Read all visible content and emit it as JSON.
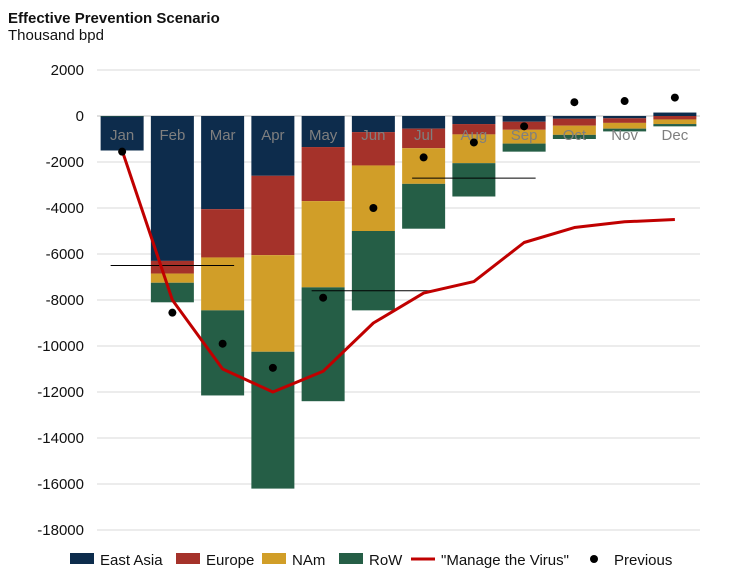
{
  "chart_data": {
    "type": "bar",
    "stacked": true,
    "title": "Effective Prevention Scenario",
    "subtitle": "Thousand bpd",
    "ylim": [
      -18000,
      2000
    ],
    "yticks": [
      2000,
      0,
      -2000,
      -4000,
      -6000,
      -8000,
      -10000,
      -12000,
      -14000,
      -16000,
      -18000
    ],
    "categories": [
      "Jan",
      "Feb",
      "Mar",
      "Apr",
      "May",
      "Jun",
      "Jul",
      "Aug",
      "Sep",
      "Oct",
      "Nov",
      "Dec"
    ],
    "series": [
      {
        "name": "East Asia",
        "color": "#0d2c4c",
        "values": [
          -1500,
          -6300,
          -4050,
          -2600,
          -1350,
          -700,
          -550,
          -350,
          -250,
          -120,
          -100,
          150
        ]
      },
      {
        "name": "Europe",
        "color": "#a5322a",
        "values": [
          0,
          -550,
          -2100,
          -3450,
          -2350,
          -1450,
          -850,
          -450,
          -350,
          -300,
          -200,
          -150
        ]
      },
      {
        "name": "NAm",
        "color": "#d19e28",
        "values": [
          0,
          -400,
          -2300,
          -4200,
          -3750,
          -2850,
          -1550,
          -1250,
          -600,
          -400,
          -250,
          -200
        ]
      },
      {
        "name": "RoW",
        "color": "#255e46",
        "values": [
          0,
          -850,
          -3700,
          -5950,
          -4950,
          -3450,
          -1950,
          -1450,
          -350,
          -180,
          -120,
          -100
        ]
      }
    ],
    "line": {
      "name": "\"Manage the Virus\"",
      "color": "#c00000",
      "values": [
        -1500,
        -8000,
        -11000,
        -12000,
        -11100,
        -9000,
        -7700,
        -7200,
        -5500,
        -4850,
        -4600,
        -4500
      ]
    },
    "scatter": {
      "name": "Previous",
      "color": "#000000",
      "values": [
        -1550,
        -8550,
        -9900,
        -10950,
        -7900,
        -4000,
        -1800,
        -1150,
        -450,
        600,
        650,
        800
      ]
    },
    "reference_lines": [
      {
        "from": "Jan",
        "to": "Mar",
        "value": -6500
      },
      {
        "from": "May",
        "to": "Jul",
        "value": -7600
      },
      {
        "from": "Jul",
        "to": "Sep",
        "value": -2700
      }
    ]
  },
  "legend": [
    {
      "label": "East Asia",
      "kind": "box",
      "color": "#0d2c4c"
    },
    {
      "label": "Europe",
      "kind": "box",
      "color": "#a5322a"
    },
    {
      "label": "NAm",
      "kind": "box",
      "color": "#d19e28"
    },
    {
      "label": "RoW",
      "kind": "box",
      "color": "#255e46"
    },
    {
      "label": "\"Manage the Virus\"",
      "kind": "line",
      "color": "#c00000"
    },
    {
      "label": "Previous",
      "kind": "dot",
      "color": "#000000"
    }
  ]
}
